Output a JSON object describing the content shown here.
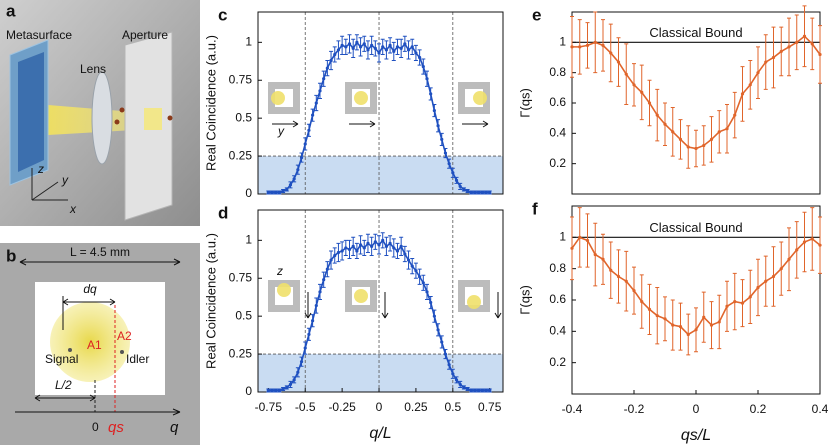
{
  "illustration": {
    "panel_label": "a",
    "labels": [
      "Metasurface",
      "Lens",
      "Aperture",
      "z",
      "y",
      "x"
    ]
  },
  "diagram": {
    "panel_label": "b",
    "width_label": "L = 4.5 mm",
    "separation": "dq",
    "area1": "A1",
    "area2": "A2",
    "signal": "Signal",
    "idler": "Idler",
    "half": "L/2",
    "origin": "0",
    "shift": "qs",
    "axis": "q"
  },
  "chart_data": [
    {
      "type": "line",
      "panel_label": "c",
      "ylabel": "Real Coincidence (a.u.)",
      "color": "#1f50c0",
      "inset_label": "y",
      "x": [
        -0.75,
        -0.725,
        -0.7,
        -0.675,
        -0.65,
        -0.625,
        -0.6,
        -0.575,
        -0.55,
        -0.525,
        -0.5,
        -0.475,
        -0.45,
        -0.425,
        -0.4,
        -0.375,
        -0.35,
        -0.325,
        -0.3,
        -0.275,
        -0.25,
        -0.225,
        -0.2,
        -0.175,
        -0.15,
        -0.125,
        -0.1,
        -0.075,
        -0.05,
        -0.025,
        0,
        0.025,
        0.05,
        0.075,
        0.1,
        0.125,
        0.15,
        0.175,
        0.2,
        0.225,
        0.25,
        0.275,
        0.3,
        0.325,
        0.35,
        0.375,
        0.4,
        0.425,
        0.45,
        0.475,
        0.5,
        0.525,
        0.55,
        0.575,
        0.6,
        0.625,
        0.65,
        0.675,
        0.7,
        0.725,
        0.75
      ],
      "values": [
        0.01,
        0.01,
        0.01,
        0.01,
        0.02,
        0.03,
        0.06,
        0.1,
        0.16,
        0.24,
        0.33,
        0.42,
        0.52,
        0.6,
        0.68,
        0.76,
        0.83,
        0.88,
        0.92,
        0.95,
        0.98,
        0.97,
        0.99,
        0.96,
        1.0,
        0.97,
        0.99,
        0.95,
        0.98,
        0.96,
        0.93,
        0.97,
        0.95,
        0.98,
        0.94,
        0.97,
        0.96,
        0.99,
        0.95,
        0.97,
        0.93,
        0.9,
        0.84,
        0.76,
        0.66,
        0.55,
        0.45,
        0.36,
        0.27,
        0.2,
        0.14,
        0.09,
        0.05,
        0.03,
        0.02,
        0.01,
        0.01,
        0.01,
        0.01,
        0.01,
        0.01
      ],
      "errors": [
        0.01,
        0.01,
        0.01,
        0.01,
        0.01,
        0.01,
        0.02,
        0.02,
        0.03,
        0.03,
        0.04,
        0.04,
        0.04,
        0.05,
        0.05,
        0.05,
        0.05,
        0.06,
        0.05,
        0.06,
        0.06,
        0.05,
        0.06,
        0.06,
        0.05,
        0.06,
        0.05,
        0.06,
        0.06,
        0.05,
        0.06,
        0.05,
        0.06,
        0.05,
        0.06,
        0.05,
        0.06,
        0.05,
        0.06,
        0.05,
        0.05,
        0.05,
        0.05,
        0.05,
        0.04,
        0.04,
        0.04,
        0.04,
        0.03,
        0.03,
        0.03,
        0.02,
        0.02,
        0.01,
        0.01,
        0.01,
        0.01,
        0.01,
        0.01,
        0.01,
        0.01
      ],
      "xlim": [
        -0.82,
        0.84
      ],
      "ylim": [
        0,
        1.2
      ],
      "yticks": [
        0,
        0.25,
        0.5,
        0.75,
        1
      ],
      "vlines": [
        -0.5,
        0,
        0.5
      ],
      "shade": [
        0,
        0.25
      ],
      "shade_color": "#c9dcf2"
    },
    {
      "type": "line",
      "panel_label": "d",
      "ylabel": "Real Coincidence (a.u.)",
      "xlabel": "q/L",
      "color": "#1f50c0",
      "inset_label": "z",
      "x": [
        -0.75,
        -0.725,
        -0.7,
        -0.675,
        -0.65,
        -0.625,
        -0.6,
        -0.575,
        -0.55,
        -0.525,
        -0.5,
        -0.475,
        -0.45,
        -0.425,
        -0.4,
        -0.375,
        -0.35,
        -0.325,
        -0.3,
        -0.275,
        -0.25,
        -0.225,
        -0.2,
        -0.175,
        -0.15,
        -0.125,
        -0.1,
        -0.075,
        -0.05,
        -0.025,
        0,
        0.025,
        0.05,
        0.075,
        0.1,
        0.125,
        0.15,
        0.175,
        0.2,
        0.225,
        0.25,
        0.275,
        0.3,
        0.325,
        0.35,
        0.375,
        0.4,
        0.425,
        0.45,
        0.475,
        0.5,
        0.525,
        0.55,
        0.575,
        0.6,
        0.625,
        0.65,
        0.675,
        0.7,
        0.725,
        0.75
      ],
      "values": [
        0.01,
        0.01,
        0.01,
        0.01,
        0.02,
        0.03,
        0.05,
        0.08,
        0.13,
        0.2,
        0.29,
        0.38,
        0.47,
        0.57,
        0.66,
        0.74,
        0.81,
        0.87,
        0.9,
        0.92,
        0.93,
        0.95,
        0.94,
        0.96,
        0.93,
        0.97,
        0.95,
        0.98,
        0.96,
        0.99,
        0.97,
        1.0,
        0.96,
        0.98,
        0.95,
        0.93,
        0.96,
        0.91,
        0.87,
        0.83,
        0.8,
        0.76,
        0.72,
        0.66,
        0.59,
        0.5,
        0.41,
        0.33,
        0.25,
        0.18,
        0.12,
        0.08,
        0.05,
        0.03,
        0.02,
        0.01,
        0.01,
        0.01,
        0.01,
        0.01,
        0.01
      ],
      "errors": [
        0.01,
        0.01,
        0.01,
        0.01,
        0.01,
        0.01,
        0.02,
        0.02,
        0.03,
        0.03,
        0.04,
        0.04,
        0.04,
        0.05,
        0.05,
        0.05,
        0.05,
        0.06,
        0.05,
        0.06,
        0.06,
        0.05,
        0.06,
        0.06,
        0.05,
        0.06,
        0.05,
        0.06,
        0.06,
        0.05,
        0.06,
        0.05,
        0.06,
        0.05,
        0.06,
        0.05,
        0.06,
        0.05,
        0.06,
        0.05,
        0.05,
        0.05,
        0.05,
        0.05,
        0.04,
        0.04,
        0.04,
        0.04,
        0.03,
        0.03,
        0.03,
        0.02,
        0.02,
        0.01,
        0.01,
        0.01,
        0.01,
        0.01,
        0.01,
        0.01,
        0.01
      ],
      "xlim": [
        -0.82,
        0.84
      ],
      "ylim": [
        0,
        1.2
      ],
      "yticks": [
        0,
        0.25,
        0.5,
        0.75,
        1
      ],
      "xticks": [
        -0.75,
        -0.5,
        -0.25,
        0,
        0.25,
        0.5,
        0.75
      ],
      "vlines": [
        -0.5,
        0,
        0.5
      ],
      "shade": [
        0,
        0.25
      ],
      "shade_color": "#c9dcf2"
    },
    {
      "type": "line",
      "panel_label": "e",
      "ylabel": "Γ(qs)",
      "color": "#e0652b",
      "x": [
        -0.4,
        -0.375,
        -0.35,
        -0.325,
        -0.3,
        -0.275,
        -0.25,
        -0.225,
        -0.2,
        -0.175,
        -0.15,
        -0.125,
        -0.1,
        -0.075,
        -0.05,
        -0.025,
        0,
        0.025,
        0.05,
        0.075,
        0.1,
        0.125,
        0.15,
        0.175,
        0.2,
        0.225,
        0.25,
        0.275,
        0.3,
        0.325,
        0.35,
        0.375,
        0.4
      ],
      "values": [
        0.97,
        0.97,
        0.98,
        1.0,
        0.98,
        0.93,
        0.87,
        0.79,
        0.72,
        0.67,
        0.6,
        0.52,
        0.46,
        0.41,
        0.36,
        0.31,
        0.3,
        0.32,
        0.36,
        0.41,
        0.43,
        0.52,
        0.66,
        0.72,
        0.8,
        0.87,
        0.9,
        0.94,
        0.97,
        1.0,
        1.04,
        0.99,
        0.92
      ],
      "errors": [
        0.2,
        0.18,
        0.15,
        0.2,
        0.17,
        0.19,
        0.16,
        0.2,
        0.14,
        0.18,
        0.15,
        0.17,
        0.14,
        0.16,
        0.13,
        0.14,
        0.12,
        0.13,
        0.15,
        0.14,
        0.16,
        0.15,
        0.18,
        0.16,
        0.17,
        0.18,
        0.2,
        0.16,
        0.19,
        0.18,
        0.2,
        0.17,
        0.19
      ],
      "xlim": [
        -0.4,
        0.4
      ],
      "ylim": [
        0,
        1.2
      ],
      "yticks": [
        0.2,
        0.4,
        0.6,
        0.8,
        1
      ],
      "reference": {
        "value": 1,
        "label": "Classical Bound"
      }
    },
    {
      "type": "line",
      "panel_label": "f",
      "ylabel": "Γ(qs)",
      "xlabel": "qs/L",
      "color": "#e0652b",
      "x": [
        -0.4,
        -0.375,
        -0.35,
        -0.325,
        -0.3,
        -0.275,
        -0.25,
        -0.225,
        -0.2,
        -0.175,
        -0.15,
        -0.125,
        -0.1,
        -0.075,
        -0.05,
        -0.025,
        0,
        0.025,
        0.05,
        0.075,
        0.1,
        0.125,
        0.15,
        0.175,
        0.2,
        0.225,
        0.25,
        0.275,
        0.3,
        0.325,
        0.35,
        0.375,
        0.4
      ],
      "values": [
        0.93,
        1.0,
        0.98,
        0.89,
        0.86,
        0.79,
        0.75,
        0.72,
        0.66,
        0.59,
        0.54,
        0.5,
        0.48,
        0.44,
        0.43,
        0.38,
        0.41,
        0.49,
        0.44,
        0.46,
        0.56,
        0.59,
        0.58,
        0.62,
        0.68,
        0.72,
        0.75,
        0.8,
        0.86,
        0.92,
        0.97,
        0.99,
        0.95
      ],
      "errors": [
        0.2,
        0.19,
        0.17,
        0.2,
        0.16,
        0.18,
        0.17,
        0.19,
        0.15,
        0.17,
        0.16,
        0.18,
        0.14,
        0.16,
        0.15,
        0.13,
        0.14,
        0.16,
        0.15,
        0.17,
        0.16,
        0.18,
        0.15,
        0.17,
        0.18,
        0.16,
        0.19,
        0.17,
        0.2,
        0.18,
        0.19,
        0.2,
        0.18
      ],
      "xlim": [
        -0.4,
        0.4
      ],
      "ylim": [
        0,
        1.2
      ],
      "yticks": [
        0.2,
        0.4,
        0.6,
        0.8,
        1
      ],
      "xticks": [
        -0.4,
        -0.2,
        0,
        0.2,
        0.4
      ],
      "reference": {
        "value": 1,
        "label": "Classical Bound"
      }
    }
  ]
}
